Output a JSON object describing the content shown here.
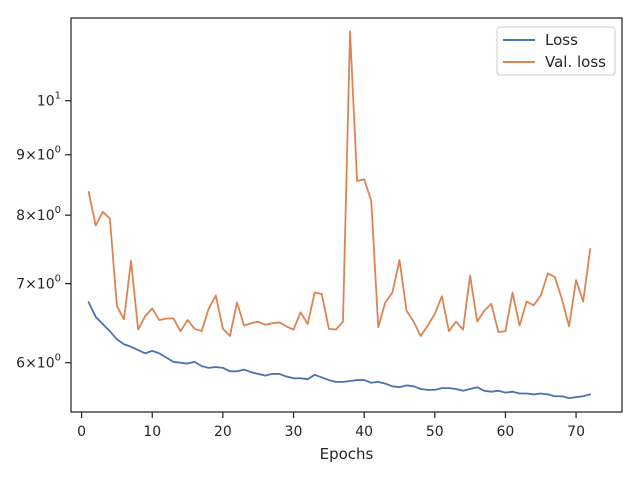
{
  "chart_data": {
    "type": "line",
    "xlabel": "Epochs",
    "ylabel": "",
    "yscale": "log",
    "xlim": [
      -1.5,
      76.5
    ],
    "ylim": [
      5.45,
      11.75
    ],
    "grid": false,
    "legend_placement": "top-right",
    "x_ticks": [
      0,
      10,
      20,
      30,
      40,
      50,
      60,
      70
    ],
    "x_tick_labels": [
      "0",
      "10",
      "20",
      "30",
      "40",
      "50",
      "60",
      "70"
    ],
    "y_ticks": [
      6,
      7,
      8,
      9,
      10
    ],
    "y_tick_labels": [
      {
        "base": "6",
        "sep": "×",
        "exp_base": "10",
        "exp": "0"
      },
      {
        "base": "7",
        "sep": "×",
        "exp_base": "10",
        "exp": "0"
      },
      {
        "base": "8",
        "sep": "×",
        "exp_base": "10",
        "exp": "0"
      },
      {
        "base": "9",
        "sep": "×",
        "exp_base": "10",
        "exp": "0"
      },
      {
        "base": "",
        "sep": "",
        "exp_base": "10",
        "exp": "1"
      }
    ],
    "series": [
      {
        "name": "Loss",
        "color": "#4c72b0",
        "x": [
          1,
          2,
          3,
          4,
          5,
          6,
          7,
          8,
          9,
          10,
          11,
          12,
          13,
          14,
          15,
          16,
          17,
          18,
          19,
          20,
          21,
          22,
          23,
          24,
          25,
          26,
          27,
          28,
          29,
          30,
          31,
          32,
          33,
          34,
          35,
          36,
          37,
          38,
          39,
          40,
          41,
          42,
          43,
          44,
          45,
          46,
          47,
          48,
          49,
          50,
          51,
          52,
          53,
          54,
          55,
          56,
          57,
          58,
          59,
          60,
          61,
          62,
          63,
          64,
          65,
          66,
          67,
          68,
          69,
          70,
          71,
          72
        ],
        "values": [
          6.75,
          6.56,
          6.47,
          6.38,
          6.28,
          6.22,
          6.19,
          6.15,
          6.11,
          6.14,
          6.11,
          6.06,
          6.01,
          6.0,
          5.99,
          6.01,
          5.96,
          5.94,
          5.95,
          5.94,
          5.9,
          5.9,
          5.92,
          5.89,
          5.87,
          5.85,
          5.87,
          5.87,
          5.84,
          5.82,
          5.82,
          5.81,
          5.86,
          5.83,
          5.8,
          5.78,
          5.78,
          5.79,
          5.8,
          5.8,
          5.77,
          5.78,
          5.76,
          5.73,
          5.72,
          5.74,
          5.73,
          5.7,
          5.69,
          5.69,
          5.71,
          5.71,
          5.7,
          5.68,
          5.7,
          5.72,
          5.68,
          5.67,
          5.68,
          5.66,
          5.67,
          5.65,
          5.65,
          5.64,
          5.65,
          5.64,
          5.62,
          5.62,
          5.6,
          5.61,
          5.62,
          5.64
        ]
      },
      {
        "name": "Val. loss",
        "color": "#dd8452",
        "x": [
          1,
          2,
          3,
          4,
          5,
          6,
          7,
          8,
          9,
          10,
          11,
          12,
          13,
          14,
          15,
          16,
          17,
          18,
          19,
          20,
          21,
          22,
          23,
          24,
          25,
          26,
          27,
          28,
          29,
          30,
          31,
          32,
          33,
          34,
          35,
          36,
          37,
          38,
          39,
          40,
          41,
          42,
          43,
          44,
          45,
          46,
          47,
          48,
          49,
          50,
          51,
          52,
          53,
          54,
          55,
          56,
          57,
          58,
          59,
          60,
          61,
          62,
          63,
          64,
          65,
          66,
          67,
          68,
          69,
          70,
          71,
          72
        ],
        "values": [
          8.37,
          7.84,
          8.05,
          7.95,
          6.7,
          6.53,
          7.32,
          6.4,
          6.57,
          6.67,
          6.52,
          6.54,
          6.54,
          6.38,
          6.52,
          6.41,
          6.38,
          6.67,
          6.84,
          6.41,
          6.32,
          6.75,
          6.45,
          6.48,
          6.5,
          6.46,
          6.48,
          6.49,
          6.44,
          6.4,
          6.62,
          6.47,
          6.88,
          6.86,
          6.41,
          6.4,
          6.5,
          11.45,
          8.55,
          8.58,
          8.23,
          6.43,
          6.75,
          6.88,
          7.33,
          6.64,
          6.5,
          6.32,
          6.45,
          6.6,
          6.83,
          6.38,
          6.5,
          6.4,
          7.11,
          6.5,
          6.64,
          6.73,
          6.37,
          6.38,
          6.88,
          6.45,
          6.76,
          6.71,
          6.84,
          7.14,
          7.09,
          6.79,
          6.44,
          7.05,
          6.76,
          7.49
        ]
      }
    ]
  }
}
